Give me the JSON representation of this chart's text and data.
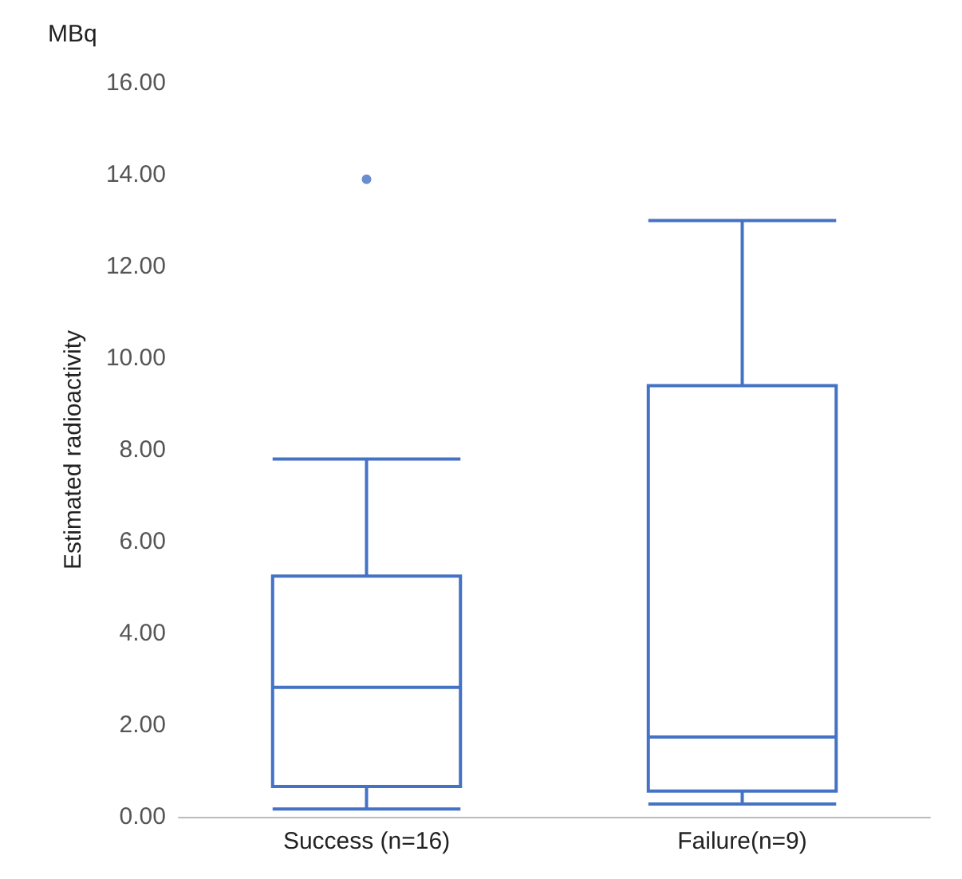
{
  "chart_data": {
    "type": "box",
    "ylabel": "Estimated radioactivity",
    "annotations": [
      "MBq"
    ],
    "categories": [
      "Success (n=16)",
      "Failure(n=9)"
    ],
    "boxes": [
      {
        "low": 0.17,
        "q1": 0.66,
        "median": 2.82,
        "q3": 5.25,
        "high": 7.8,
        "outliers": [
          13.9
        ]
      },
      {
        "low": 0.28,
        "q1": 0.56,
        "median": 1.74,
        "q3": 9.4,
        "high": 13.0
      }
    ],
    "color": "#4472c4",
    "ylim": [
      0,
      16
    ],
    "yticks": [
      {
        "value": 0,
        "label": "0.00"
      },
      {
        "value": 2,
        "label": "2.00"
      },
      {
        "value": 4,
        "label": "4.00"
      },
      {
        "value": 6,
        "label": "6.00"
      },
      {
        "value": 8,
        "label": "8.00"
      },
      {
        "value": 10,
        "label": "10.00"
      },
      {
        "value": 12,
        "label": "12.00"
      },
      {
        "value": 14,
        "label": "14.00"
      },
      {
        "value": 16,
        "label": "16.00"
      }
    ],
    "grid": false
  }
}
